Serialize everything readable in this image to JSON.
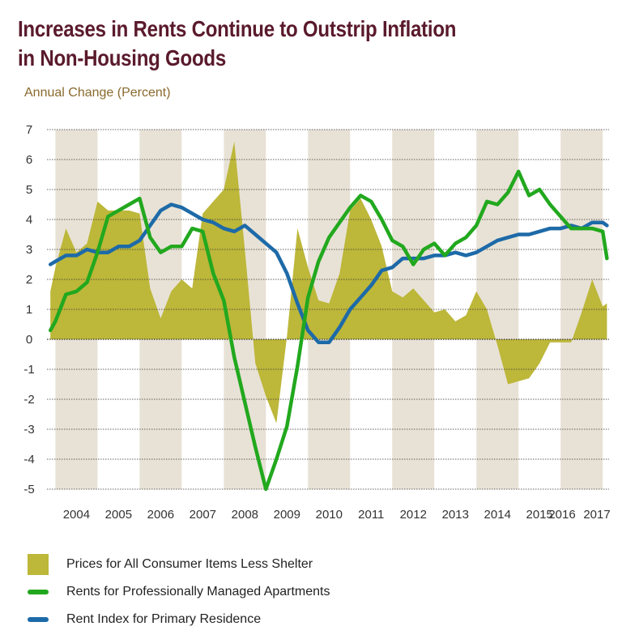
{
  "title_lines": [
    "Increases in Rents Continue to Outstrip Inflation",
    "in Non-Housing Goods"
  ],
  "colors": {
    "title": "#5a1a2c",
    "band": "#e8e2d6",
    "area": "#bdb73a",
    "green": "#22a81e",
    "blue": "#1d6aa8",
    "grid": "#333333",
    "axis_text": "#333333"
  },
  "chart_data": {
    "type": "area",
    "title": "Increases in Rents Continue to Outstrip Inflation in Non-Housing Goods",
    "ylabel": "Annual Change (Percent)",
    "xlabel": "",
    "ylim": [
      -5,
      7
    ],
    "yticks": [
      7,
      6,
      5,
      4,
      3,
      2,
      1,
      0,
      -1,
      -2,
      -3,
      -4,
      -5
    ],
    "xlim": [
      2003.8,
      2017.15
    ],
    "xticks": [
      "2004",
      "2005",
      "2006",
      "2007",
      "2008",
      "2009",
      "2010",
      "2011",
      "2012",
      "2013",
      "2014",
      "2015",
      "2016",
      "2017"
    ],
    "grid": "horizontal",
    "shaded_years": [
      "2004",
      "2006",
      "2008",
      "2010",
      "2012",
      "2014",
      "2016"
    ],
    "legend_position": "bottom",
    "series": [
      {
        "name": "Prices for All Consumer Items Less Shelter",
        "type": "area",
        "x": [
          2003.88,
          2004.0,
          2004.25,
          2004.5,
          2004.75,
          2005.0,
          2005.25,
          2005.5,
          2005.75,
          2006.0,
          2006.25,
          2006.5,
          2006.75,
          2007.0,
          2007.25,
          2007.5,
          2007.75,
          2008.0,
          2008.25,
          2008.5,
          2008.75,
          2009.0,
          2009.25,
          2009.5,
          2009.75,
          2010.0,
          2010.25,
          2010.5,
          2010.75,
          2011.0,
          2011.25,
          2011.5,
          2011.75,
          2012.0,
          2012.25,
          2012.5,
          2012.75,
          2013.0,
          2013.25,
          2013.5,
          2013.75,
          2014.0,
          2014.25,
          2014.5,
          2014.75,
          2015.0,
          2015.25,
          2015.5,
          2015.75,
          2016.0,
          2016.25,
          2016.5,
          2016.75,
          2017.0,
          2017.1
        ],
        "values": [
          1.6,
          2.4,
          3.7,
          2.9,
          3.2,
          4.6,
          4.3,
          4.3,
          4.3,
          4.2,
          1.7,
          0.7,
          1.6,
          2.0,
          1.7,
          4.2,
          4.6,
          5.0,
          6.6,
          3.0,
          -0.8,
          -1.9,
          -2.8,
          0.1,
          3.7,
          2.4,
          1.3,
          1.2,
          2.2,
          4.3,
          4.7,
          4.0,
          3.1,
          1.6,
          1.4,
          1.7,
          1.3,
          0.9,
          1.0,
          0.6,
          0.8,
          1.6,
          1.0,
          -0.2,
          -1.5,
          -1.4,
          -1.3,
          -0.8,
          -0.1,
          -0.1,
          -0.1,
          0.9,
          2.0,
          1.1,
          1.2
        ]
      },
      {
        "name": "Rents for Professionally Managed Apartments",
        "type": "line",
        "x": [
          2003.88,
          2004.0,
          2004.25,
          2004.5,
          2004.75,
          2005.0,
          2005.25,
          2005.5,
          2005.75,
          2006.0,
          2006.25,
          2006.5,
          2006.75,
          2007.0,
          2007.25,
          2007.5,
          2007.75,
          2008.0,
          2008.25,
          2008.5,
          2008.75,
          2009.0,
          2009.25,
          2009.5,
          2009.75,
          2010.0,
          2010.25,
          2010.5,
          2010.75,
          2011.0,
          2011.25,
          2011.5,
          2011.75,
          2012.0,
          2012.25,
          2012.5,
          2012.75,
          2013.0,
          2013.25,
          2013.5,
          2013.75,
          2014.0,
          2014.25,
          2014.5,
          2014.75,
          2015.0,
          2015.25,
          2015.5,
          2015.75,
          2016.0,
          2016.25,
          2016.5,
          2016.75,
          2017.0,
          2017.1
        ],
        "values": [
          0.3,
          0.6,
          1.5,
          1.6,
          1.9,
          2.9,
          4.1,
          4.3,
          4.5,
          4.7,
          3.4,
          2.9,
          3.1,
          3.1,
          3.7,
          3.6,
          2.2,
          1.3,
          -0.6,
          -2.1,
          -3.6,
          -5.0,
          -4.0,
          -2.9,
          -0.9,
          1.4,
          2.6,
          3.4,
          3.9,
          4.4,
          4.8,
          4.6,
          4.0,
          3.3,
          3.1,
          2.5,
          3.0,
          3.2,
          2.8,
          3.2,
          3.4,
          3.8,
          4.6,
          4.5,
          4.9,
          5.6,
          4.8,
          5.0,
          4.5,
          4.1,
          3.7,
          3.7,
          3.7,
          3.6,
          2.7
        ]
      },
      {
        "name": "Rent Index for Primary Residence",
        "type": "line",
        "x": [
          2003.88,
          2004.0,
          2004.25,
          2004.5,
          2004.75,
          2005.0,
          2005.25,
          2005.5,
          2005.75,
          2006.0,
          2006.25,
          2006.5,
          2006.75,
          2007.0,
          2007.25,
          2007.5,
          2007.75,
          2008.0,
          2008.25,
          2008.5,
          2008.75,
          2009.0,
          2009.25,
          2009.5,
          2009.75,
          2010.0,
          2010.25,
          2010.5,
          2010.75,
          2011.0,
          2011.25,
          2011.5,
          2011.75,
          2012.0,
          2012.25,
          2012.5,
          2012.75,
          2013.0,
          2013.25,
          2013.5,
          2013.75,
          2014.0,
          2014.25,
          2014.5,
          2014.75,
          2015.0,
          2015.25,
          2015.5,
          2015.75,
          2016.0,
          2016.25,
          2016.5,
          2016.75,
          2017.0,
          2017.1
        ],
        "values": [
          2.5,
          2.6,
          2.8,
          2.8,
          3.0,
          2.9,
          2.9,
          3.1,
          3.1,
          3.3,
          3.8,
          4.3,
          4.5,
          4.4,
          4.2,
          4.0,
          3.9,
          3.7,
          3.6,
          3.8,
          3.5,
          3.2,
          2.9,
          2.2,
          1.2,
          0.3,
          -0.1,
          -0.1,
          0.4,
          1.0,
          1.4,
          1.8,
          2.3,
          2.4,
          2.7,
          2.7,
          2.7,
          2.8,
          2.8,
          2.9,
          2.8,
          2.9,
          3.1,
          3.3,
          3.4,
          3.5,
          3.5,
          3.6,
          3.7,
          3.7,
          3.8,
          3.7,
          3.9,
          3.9,
          3.8
        ]
      }
    ]
  }
}
